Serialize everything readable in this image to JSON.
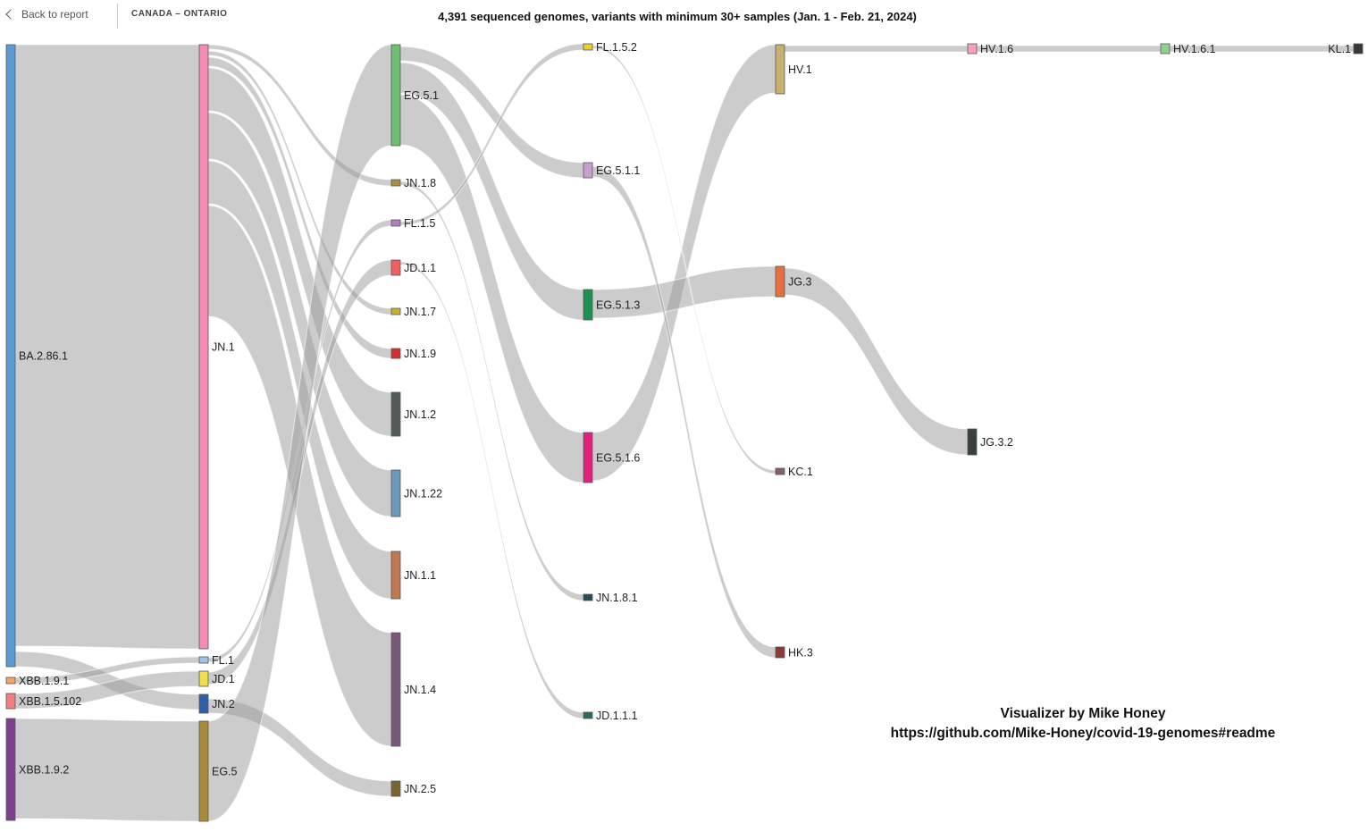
{
  "header": {
    "back_label": "Back to report",
    "breadcrumb": "CANADA – ONTARIO",
    "title": "4,391 sequenced genomes, variants with minimum 30+ samples (Jan. 1 - Feb. 21, 2024)"
  },
  "credit": {
    "line1": "Visualizer by Mike Honey",
    "line2": "https://github.com/Mike-Honey/covid-19-genomes#readme"
  },
  "colors": {
    "link": "#999999",
    "node_border": "#555555"
  },
  "nodes": [
    {
      "name": "BA.2.86.1",
      "column": 0,
      "color": "#5b9bd5"
    },
    {
      "name": "XBB.1.9.1",
      "column": 0,
      "color": "#f4a460"
    },
    {
      "name": "XBB.1.5.102",
      "column": 0,
      "color": "#f08080"
    },
    {
      "name": "XBB.1.9.2",
      "column": 0,
      "color": "#7e3f8f"
    },
    {
      "name": "JN.1",
      "column": 1,
      "color": "#f48cb6"
    },
    {
      "name": "FL.1",
      "column": 1,
      "color": "#9dc3e6"
    },
    {
      "name": "JD.1",
      "column": 1,
      "color": "#f0e050"
    },
    {
      "name": "JN.2",
      "column": 1,
      "color": "#2e5fa8"
    },
    {
      "name": "EG.5",
      "column": 1,
      "color": "#a88a3a"
    },
    {
      "name": "EG.5.1",
      "column": 2,
      "color": "#6cc070"
    },
    {
      "name": "JN.1.8",
      "column": 2,
      "color": "#a89040"
    },
    {
      "name": "FL.1.5",
      "column": 2,
      "color": "#b080c0"
    },
    {
      "name": "JD.1.1",
      "column": 2,
      "color": "#f06060"
    },
    {
      "name": "JN.1.7",
      "column": 2,
      "color": "#c8b030"
    },
    {
      "name": "JN.1.9",
      "column": 2,
      "color": "#d03030"
    },
    {
      "name": "JN.1.2",
      "column": 2,
      "color": "#555a5a"
    },
    {
      "name": "JN.1.22",
      "column": 2,
      "color": "#6a9ab8"
    },
    {
      "name": "JN.1.1",
      "column": 2,
      "color": "#c07850"
    },
    {
      "name": "JN.1.4",
      "column": 2,
      "color": "#7a5878"
    },
    {
      "name": "JN.2.5",
      "column": 2,
      "color": "#7a6430"
    },
    {
      "name": "FL.1.5.2",
      "column": 3,
      "color": "#e8d030"
    },
    {
      "name": "EG.5.1.1",
      "column": 3,
      "color": "#c8a0d0"
    },
    {
      "name": "EG.5.1.3",
      "column": 3,
      "color": "#1e9050"
    },
    {
      "name": "EG.5.1.6",
      "column": 3,
      "color": "#e0207a"
    },
    {
      "name": "JN.1.8.1",
      "column": 3,
      "color": "#2a4a58"
    },
    {
      "name": "JD.1.1.1",
      "column": 3,
      "color": "#2a6a60"
    },
    {
      "name": "HV.1",
      "column": 4,
      "color": "#c8b070"
    },
    {
      "name": "JG.3",
      "column": 4,
      "color": "#e87040"
    },
    {
      "name": "KC.1",
      "column": 4,
      "color": "#806070"
    },
    {
      "name": "HK.3",
      "column": 4,
      "color": "#8a3a3a"
    },
    {
      "name": "HV.1.6",
      "column": 5,
      "color": "#f8a0c0"
    },
    {
      "name": "JG.3.2",
      "column": 5,
      "color": "#3a3f40"
    },
    {
      "name": "HV.1.6.1",
      "column": 6,
      "color": "#90d090"
    },
    {
      "name": "KL.1",
      "column": 7,
      "color": "#333a38"
    }
  ],
  "links": [
    {
      "source": "BA.2.86.1",
      "target": "JN.1"
    },
    {
      "source": "BA.2.86.1",
      "target": "JN.2"
    },
    {
      "source": "XBB.1.9.1",
      "target": "FL.1"
    },
    {
      "source": "XBB.1.5.102",
      "target": "JD.1"
    },
    {
      "source": "XBB.1.9.2",
      "target": "EG.5"
    },
    {
      "source": "JN.1",
      "target": "JN.1.8"
    },
    {
      "source": "JN.1",
      "target": "JN.1.7"
    },
    {
      "source": "JN.1",
      "target": "JN.1.9"
    },
    {
      "source": "JN.1",
      "target": "JN.1.2"
    },
    {
      "source": "JN.1",
      "target": "JN.1.22"
    },
    {
      "source": "JN.1",
      "target": "JN.1.1"
    },
    {
      "source": "JN.1",
      "target": "JN.1.4"
    },
    {
      "source": "FL.1",
      "target": "FL.1.5"
    },
    {
      "source": "JD.1",
      "target": "JD.1.1"
    },
    {
      "source": "JN.2",
      "target": "JN.2.5"
    },
    {
      "source": "EG.5",
      "target": "EG.5.1"
    },
    {
      "source": "EG.5.1",
      "target": "EG.5.1.1"
    },
    {
      "source": "EG.5.1",
      "target": "EG.5.1.3"
    },
    {
      "source": "EG.5.1",
      "target": "EG.5.1.6"
    },
    {
      "source": "JN.1.8",
      "target": "JN.1.8.1"
    },
    {
      "source": "FL.1.5",
      "target": "FL.1.5.2"
    },
    {
      "source": "JD.1.1",
      "target": "JD.1.1.1"
    },
    {
      "source": "EG.5.1.6",
      "target": "HV.1"
    },
    {
      "source": "EG.5.1.3",
      "target": "JG.3"
    },
    {
      "source": "FL.1.5.2",
      "target": "KC.1"
    },
    {
      "source": "EG.5.1.1",
      "target": "HK.3"
    },
    {
      "source": "HV.1",
      "target": "HV.1.6"
    },
    {
      "source": "JG.3",
      "target": "JG.3.2"
    },
    {
      "source": "HV.1.6",
      "target": "HV.1.6.1"
    },
    {
      "source": "HV.1.6.1",
      "target": "KL.1"
    }
  ]
}
